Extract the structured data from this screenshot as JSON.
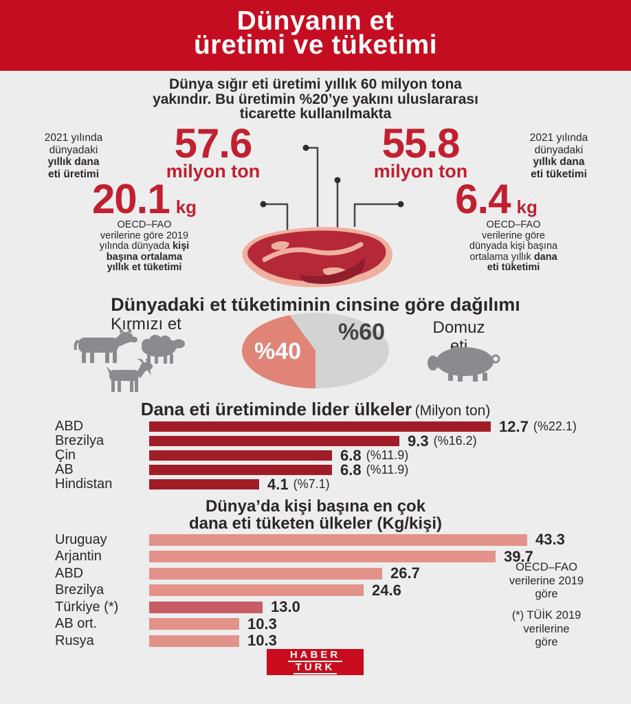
{
  "page": {
    "background": "#ededee",
    "text_color": "#2b2728"
  },
  "header": {
    "lines": [
      "Dünyanın et",
      "üretimi ve tüketimi"
    ],
    "background": "#c50d21",
    "text_color": "#ffffff"
  },
  "intro": {
    "lines": [
      "Dünya sığır eti üretimi yıllık 60 milyon tona",
      "yakındır. Bu üretimin %20’ye yakını uluslararası",
      "ticarette kullanılmakta"
    ]
  },
  "stats": {
    "accent_color": "#c1202f",
    "production": {
      "label": {
        "r1": "2021 yılında",
        "r2": "dünyadaki",
        "b1": "yıllık dana",
        "b2": "eti üretimi"
      },
      "value": "57.6",
      "unit": "milyon ton"
    },
    "consumption": {
      "label": {
        "r1": "2021 yılında",
        "r2": "dünyadaki",
        "b1": "yıllık dana",
        "b2": "eti tüketimi"
      },
      "value": "55.8",
      "unit": "milyon ton"
    },
    "per_capita_meat": {
      "value": "20.1",
      "unit": "kg",
      "desc": {
        "l1": "OECD–FAO",
        "l2": "verilerine göre 2019",
        "l3_regular": "yılında dünyada ",
        "l3_bold": "kişi",
        "l4": "başına ortalama",
        "l5": "yıllık et tüketimi"
      }
    },
    "per_capita_beef": {
      "value": "6.4",
      "unit": "kg",
      "desc": {
        "l1": "OECD–FAO",
        "l2": "verilerine göre",
        "l3": "dünyada kişi başına",
        "l4_regular": "ortalama yıllık ",
        "l4_bold": "dana",
        "l5": "eti tüketimi"
      }
    }
  },
  "chart_data": [
    {
      "type": "pie",
      "title": "Dünyadaki et tüketiminin cinsine göre dağılımı",
      "slices": [
        {
          "label": "Kırmızı et",
          "value": 40,
          "display": "%40",
          "color": "#e08478"
        },
        {
          "label": "Domuz eti",
          "value": 60,
          "display": "%60",
          "color": "#d4d3d4"
        }
      ],
      "left_label": "Kırmızı et",
      "right_label_lines": [
        "Domuz",
        "eti"
      ]
    },
    {
      "type": "bar",
      "title": "Dana eti üretiminde lider ülkeler",
      "unit_label": "(Milyon ton)",
      "max": 12.7,
      "rows": [
        {
          "label": "ABD",
          "value": 12.7,
          "display": "12.7",
          "share": "(%22.1)",
          "color": "#a01d28"
        },
        {
          "label": "Brezilya",
          "value": 9.3,
          "display": "9.3",
          "share": "(%16.2)",
          "color": "#a01d28"
        },
        {
          "label": "Çin",
          "value": 6.8,
          "display": "6.8",
          "share": "(%11.9)",
          "color": "#a01d28"
        },
        {
          "label": "AB",
          "value": 6.8,
          "display": "6.8",
          "share": "(%11.9)",
          "color": "#a01d28"
        },
        {
          "label": "Hindistan",
          "value": 4.1,
          "display": "4.1",
          "share": "(%7.1)",
          "color": "#a01d28"
        }
      ]
    },
    {
      "type": "bar",
      "title_lines": [
        "Dünya’da kişi başına en çok",
        "dana eti tüketen ülkeler (Kg/kişi)"
      ],
      "max": 43.3,
      "rows": [
        {
          "label": "Uruguay",
          "value": 43.3,
          "display": "43.3",
          "color": "#e29289"
        },
        {
          "label": "Arjantin",
          "value": 39.7,
          "display": "39.7",
          "color": "#e29289"
        },
        {
          "label": "ABD",
          "value": 26.7,
          "display": "26.7",
          "color": "#e29289"
        },
        {
          "label": "Brezilya",
          "value": 24.6,
          "display": "24.6",
          "color": "#e29289"
        },
        {
          "label": "Türkiye (*)",
          "value": 13.0,
          "display": "13.0",
          "color": "#c75e66"
        },
        {
          "label": "AB ort.",
          "value": 10.3,
          "display": "10.3",
          "color": "#e29289"
        },
        {
          "label": "Rusya",
          "value": 10.3,
          "display": "10.3",
          "color": "#e29289"
        }
      ],
      "notes": {
        "source_lines": [
          "OECD–FAO",
          "verilerine 2019",
          "göre"
        ],
        "footnote_lines": [
          "(*) TÜİK 2019",
          "verilerine",
          "göre"
        ]
      }
    }
  ],
  "footer": {
    "logo_lines": [
      "HABER",
      "TÜRK"
    ],
    "logo_color": "#c80b1d"
  }
}
